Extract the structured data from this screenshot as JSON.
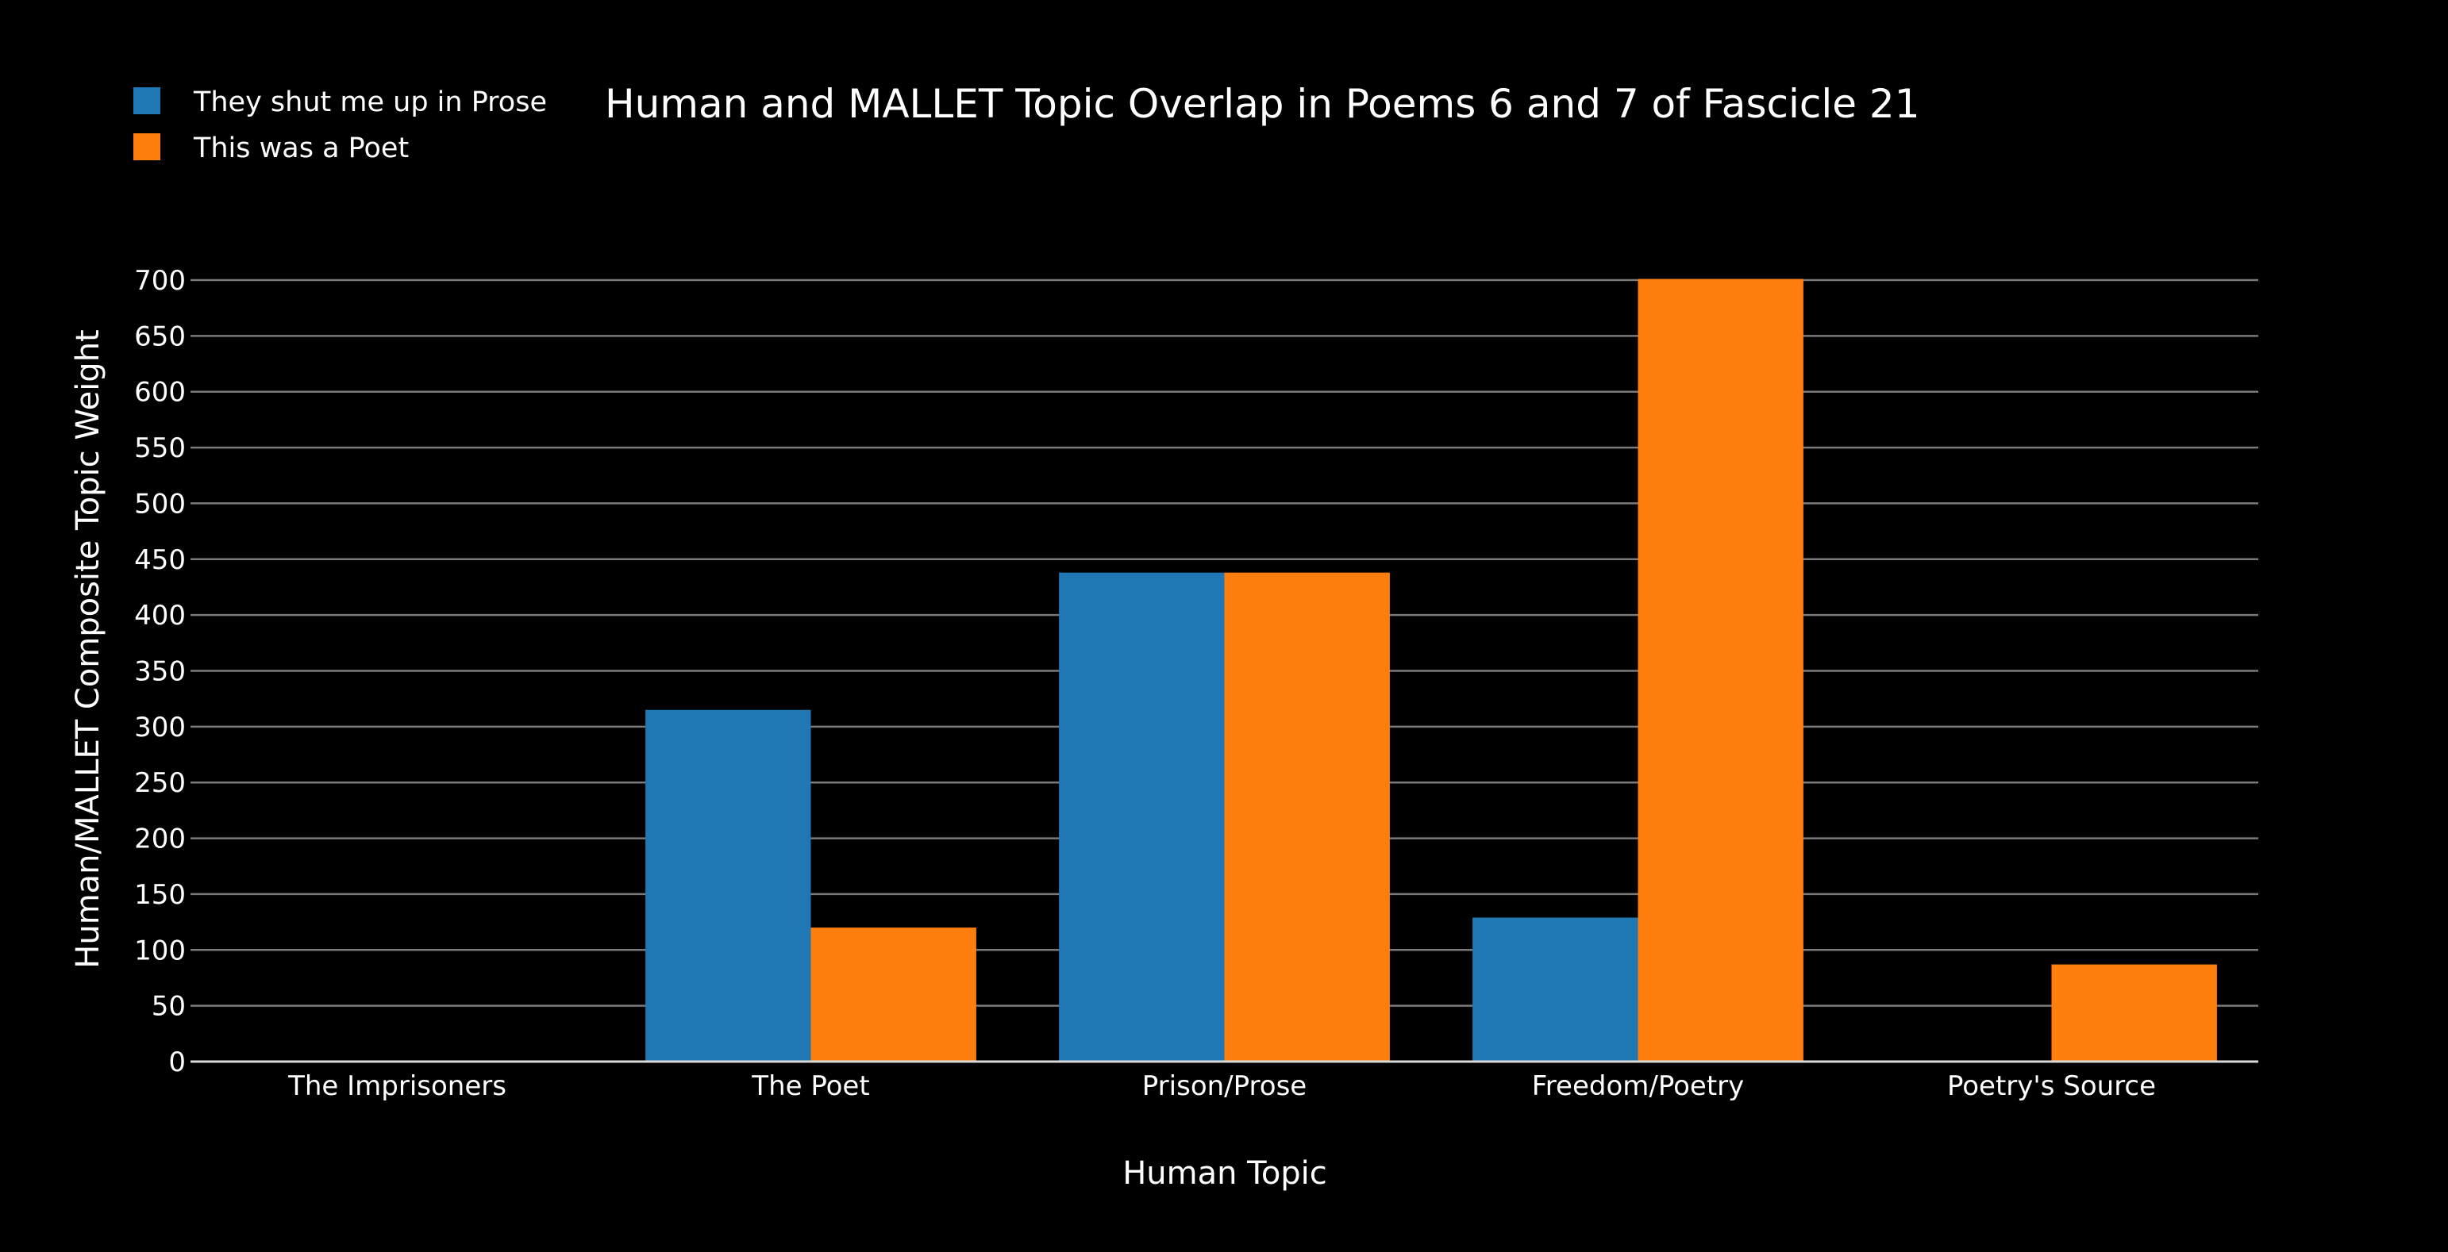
{
  "chart_data": {
    "type": "bar",
    "title": "Human and MALLET Topic Overlap in Poems 6 and 7 of Fascicle 21",
    "xlabel": "Human Topic",
    "ylabel": "Human/MALLET Composite Topic Weight",
    "categories": [
      "The Imprisoners",
      "The Poet",
      "Prison/Prose",
      "Freedom/Poetry",
      "Poetry's Source"
    ],
    "series": [
      {
        "name": "They shut me up in Prose",
        "color": "#1f77b4",
        "values": [
          0,
          315,
          438,
          129,
          0
        ]
      },
      {
        "name": "This was a Poet",
        "color": "#ff7f0e",
        "values": [
          0,
          120,
          438,
          701,
          87
        ]
      }
    ],
    "ylim": [
      0,
      700
    ],
    "yticks": [
      0,
      50,
      100,
      150,
      200,
      250,
      300,
      350,
      400,
      450,
      500,
      550,
      600,
      650,
      700
    ],
    "grid": true,
    "legend_position": "top-left",
    "background": "#000000"
  }
}
